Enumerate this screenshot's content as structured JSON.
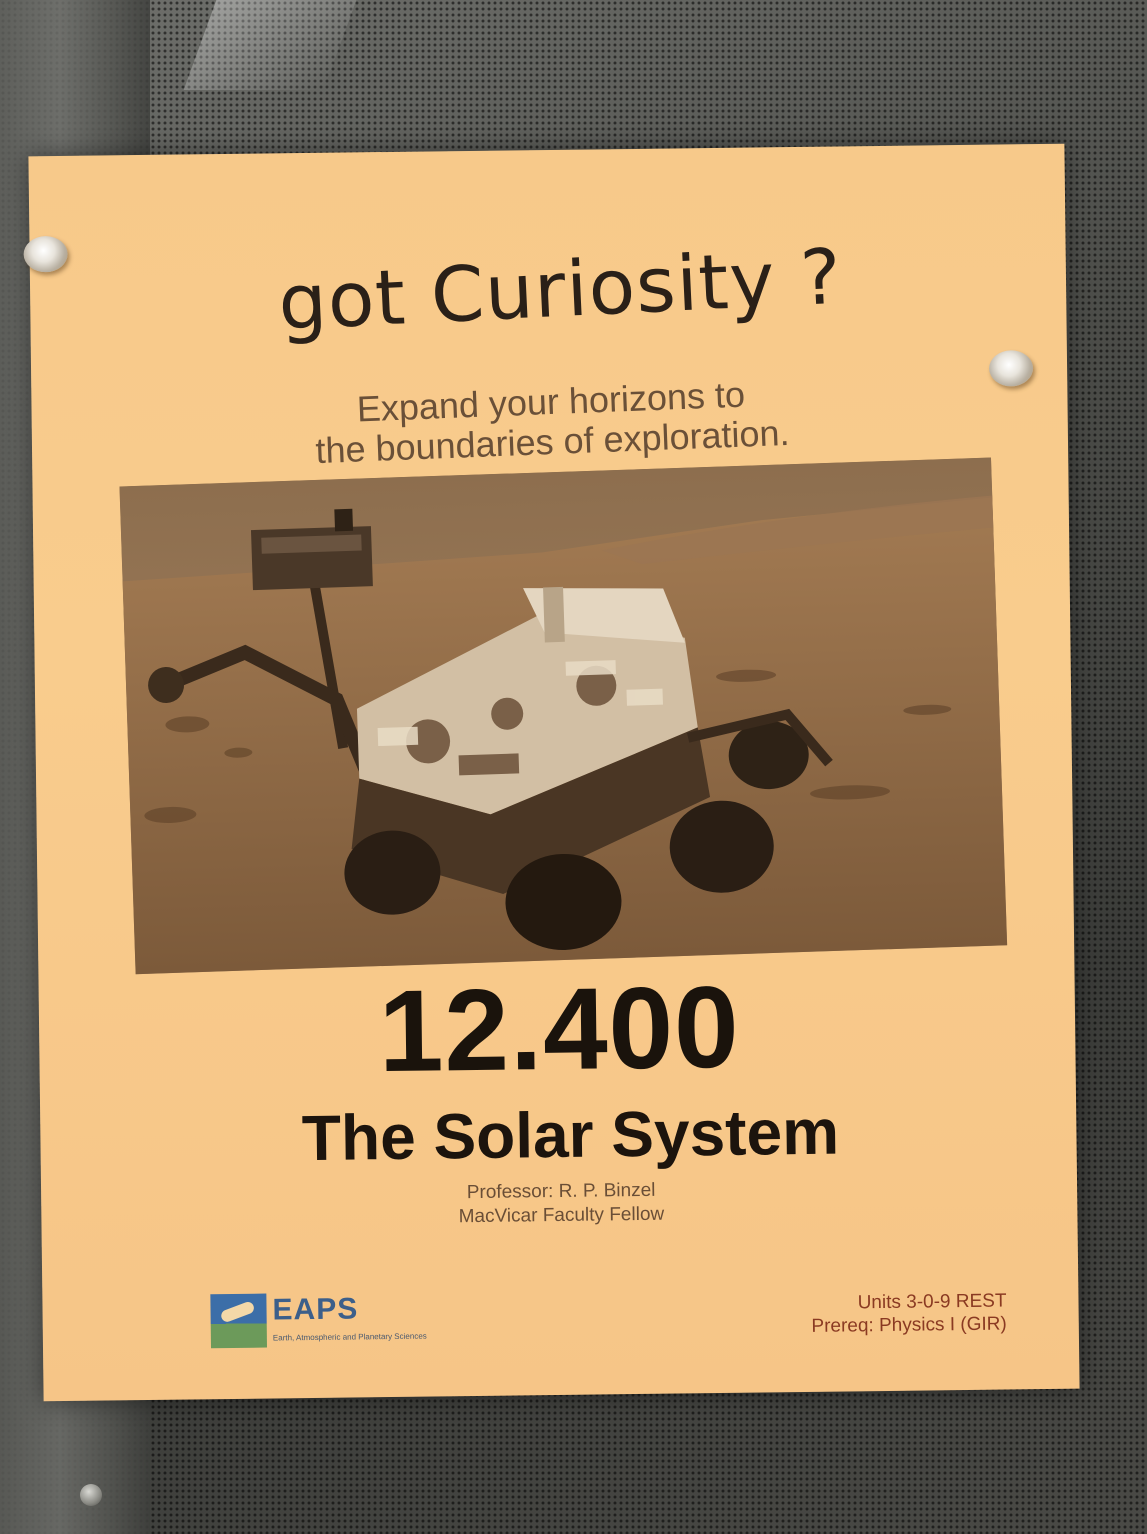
{
  "poster": {
    "headline": "got Curiosity ?",
    "tagline_line1": "Expand your horizons to",
    "tagline_line2": "the boundaries of exploration.",
    "course_number": "12.400",
    "course_title": "The Solar System",
    "instructor_line1": "Professor:  R. P. Binzel",
    "instructor_line2": "MacVicar Faculty Fellow",
    "logo_name": "EAPS",
    "logo_subtitle": "Earth, Atmospheric and Planetary Sciences",
    "units": "Units 3-0-9 REST",
    "prereq": "Prereq: Physics I (GIR)"
  },
  "colors": {
    "paper": "#f8ca8b",
    "wall": "#4a4b48",
    "text_dark": "#1c140d",
    "text_brown": "#6a5038",
    "text_red": "#8a3a22"
  }
}
